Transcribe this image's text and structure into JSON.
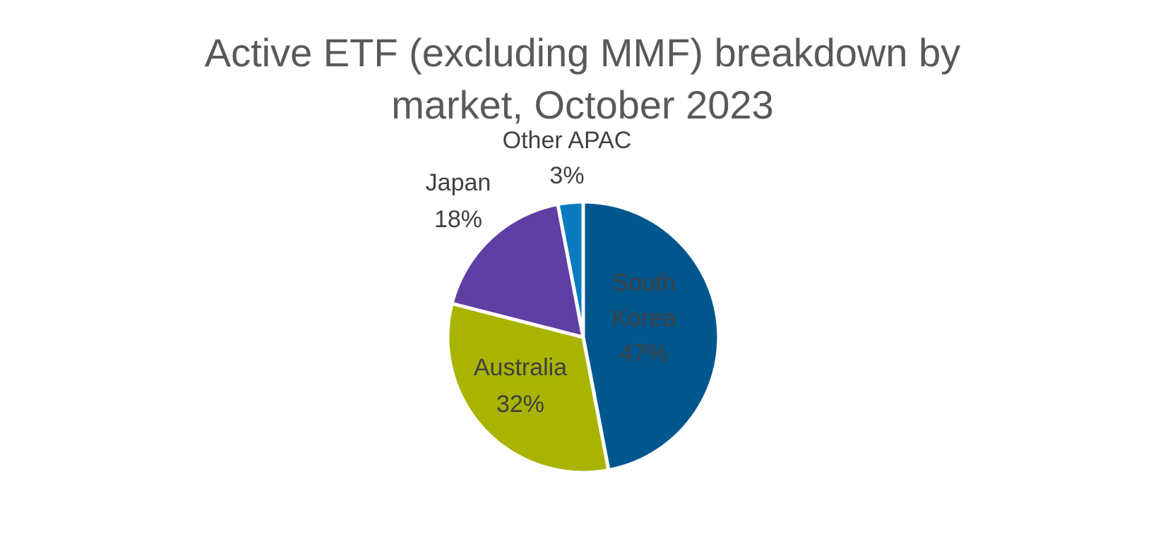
{
  "chart_data": {
    "type": "pie",
    "title_lines": [
      "Active ETF (excluding MMF) breakdown by",
      "market, October 2023"
    ],
    "start_angle_deg": 0,
    "direction": "clockwise",
    "slices": [
      {
        "name": "South Korea",
        "label_lines": [
          "South",
          "Korea",
          "47%"
        ],
        "value": 47,
        "color": "#00578E",
        "label_color": "#404040",
        "label_position": "inside"
      },
      {
        "name": "Australia",
        "label_lines": [
          "Australia",
          "32%"
        ],
        "value": 32,
        "color": "#A8B400",
        "label_color": "#404040",
        "label_position": "inside"
      },
      {
        "name": "Japan",
        "label_lines": [
          "Japan",
          "18%"
        ],
        "value": 18,
        "color": "#5F3FA3",
        "label_color": "#404040",
        "label_position": "outside"
      },
      {
        "name": "Other APAC",
        "label_lines": [
          "Other APAC",
          "3%"
        ],
        "value": 3,
        "color": "#0A7BBE",
        "label_color": "#404040",
        "label_position": "outside"
      }
    ],
    "legend": "none"
  }
}
